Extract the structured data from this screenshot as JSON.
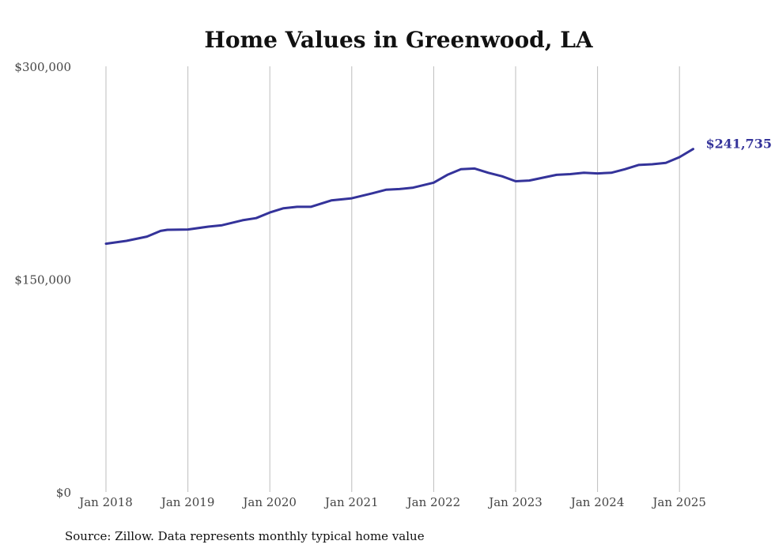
{
  "chart_data": {
    "type": "line",
    "title": "Home Values in Greenwood, LA",
    "xlabel": "",
    "ylabel": "",
    "ylim": [
      0,
      300000
    ],
    "y_ticks": [
      {
        "value": 0,
        "label": "$0"
      },
      {
        "value": 150000,
        "label": "$150,000"
      },
      {
        "value": 300000,
        "label": "$300,000"
      }
    ],
    "x_ticks": [
      "Jan 2018",
      "Jan 2019",
      "Jan 2020",
      "Jan 2021",
      "Jan 2022",
      "Jan 2023",
      "Jan 2024",
      "Jan 2025"
    ],
    "grid": "vertical",
    "source": "Source: Zillow. Data represents monthly typical home value",
    "colors": {
      "line": "#34339a",
      "grid": "#bdbdbd",
      "text": "#444444"
    },
    "end_label": "$241,735",
    "series": [
      {
        "values": [
          {
            "x": "2018-01",
            "y": 175000
          },
          {
            "x": "2018-04",
            "y": 177000
          },
          {
            "x": "2018-07",
            "y": 180000
          },
          {
            "x": "2018-09",
            "y": 184000
          },
          {
            "x": "2018-10",
            "y": 184800
          },
          {
            "x": "2019-01",
            "y": 185000
          },
          {
            "x": "2019-04",
            "y": 187000
          },
          {
            "x": "2019-06",
            "y": 188000
          },
          {
            "x": "2019-09",
            "y": 191500
          },
          {
            "x": "2019-11",
            "y": 193000
          },
          {
            "x": "2020-01",
            "y": 197000
          },
          {
            "x": "2020-03",
            "y": 200000
          },
          {
            "x": "2020-05",
            "y": 201000
          },
          {
            "x": "2020-07",
            "y": 201000
          },
          {
            "x": "2020-10",
            "y": 205500
          },
          {
            "x": "2021-01",
            "y": 207000
          },
          {
            "x": "2021-04",
            "y": 210500
          },
          {
            "x": "2021-06",
            "y": 213000
          },
          {
            "x": "2021-08",
            "y": 213500
          },
          {
            "x": "2021-10",
            "y": 214500
          },
          {
            "x": "2022-01",
            "y": 218000
          },
          {
            "x": "2022-03",
            "y": 223500
          },
          {
            "x": "2022-05",
            "y": 227500
          },
          {
            "x": "2022-07",
            "y": 228000
          },
          {
            "x": "2022-09",
            "y": 225000
          },
          {
            "x": "2022-11",
            "y": 222500
          },
          {
            "x": "2023-01",
            "y": 219000
          },
          {
            "x": "2023-03",
            "y": 219500
          },
          {
            "x": "2023-05",
            "y": 221500
          },
          {
            "x": "2023-07",
            "y": 223500
          },
          {
            "x": "2023-09",
            "y": 224000
          },
          {
            "x": "2023-11",
            "y": 225000
          },
          {
            "x": "2024-01",
            "y": 224500
          },
          {
            "x": "2024-03",
            "y": 225000
          },
          {
            "x": "2024-05",
            "y": 227500
          },
          {
            "x": "2024-07",
            "y": 230500
          },
          {
            "x": "2024-09",
            "y": 231000
          },
          {
            "x": "2024-11",
            "y": 232000
          },
          {
            "x": "2025-01",
            "y": 236000
          },
          {
            "x": "2025-03",
            "y": 241735
          }
        ]
      }
    ]
  }
}
